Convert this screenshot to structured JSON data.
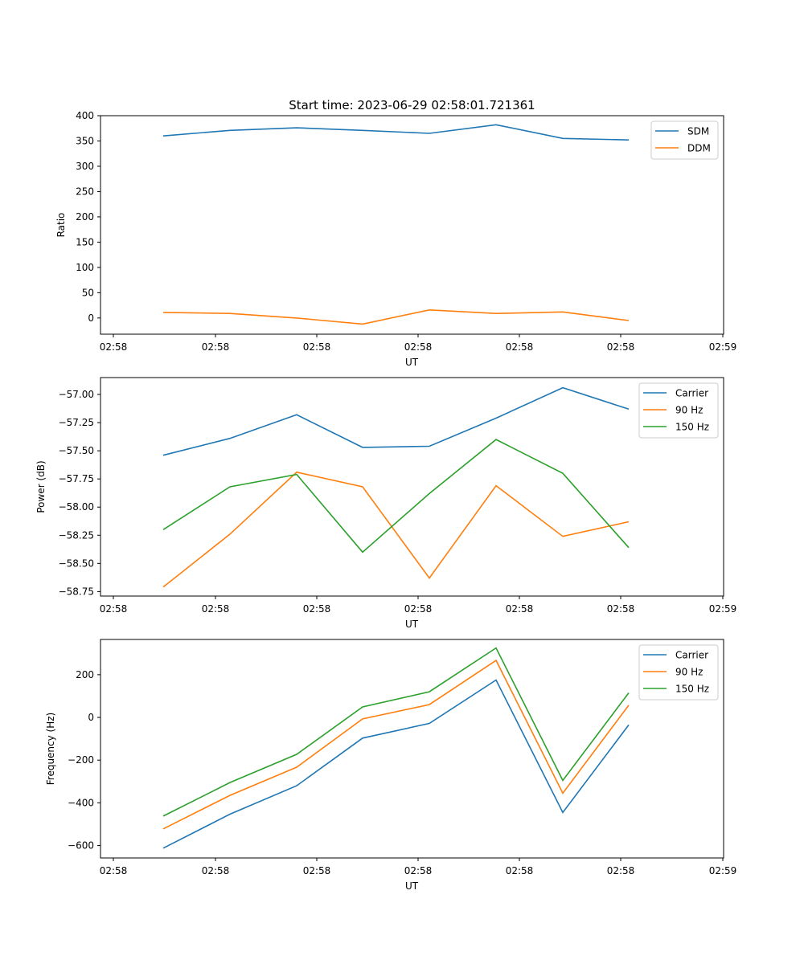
{
  "figure": {
    "title": "Start time: 2023-06-29 02:58:01.721361"
  },
  "colors": {
    "blue": "#1f77b4",
    "orange": "#ff7f0e",
    "green": "#2ca02c"
  },
  "chart_data": [
    {
      "type": "line",
      "title": "Start time: 2023-06-29 02:58:01.721361",
      "xlabel": "UT",
      "ylabel": "Ratio",
      "x_tick_labels": [
        "02:58",
        "02:58",
        "02:58",
        "02:58",
        "02:58",
        "02:58",
        "02:58"
      ],
      "x_tick_labels_last": "02:59",
      "ylim": [
        -32,
        400
      ],
      "y_ticks": [
        0,
        50,
        100,
        150,
        200,
        250,
        300,
        350,
        400
      ],
      "legend_position": "top-right",
      "grid": false,
      "series": [
        {
          "name": "SDM",
          "color": "#1f77b4",
          "values": [
            360,
            371,
            376,
            371,
            365,
            382,
            355,
            352
          ]
        },
        {
          "name": "DDM",
          "color": "#ff7f0e",
          "values": [
            11,
            9,
            0,
            -12,
            16,
            9,
            12,
            -5
          ]
        }
      ]
    },
    {
      "type": "line",
      "title": "",
      "xlabel": "UT",
      "ylabel": "Power (dB)",
      "x_tick_labels": [
        "02:58",
        "02:58",
        "02:58",
        "02:58",
        "02:58",
        "02:58",
        "02:58"
      ],
      "x_tick_labels_last": "02:59",
      "ylim": [
        -58.79,
        -56.85
      ],
      "y_ticks": [
        -58.75,
        -58.5,
        -58.25,
        -58.0,
        -57.75,
        -57.5,
        -57.25,
        -57.0
      ],
      "y_tick_labels": [
        "−58.75",
        "−58.50",
        "−58.25",
        "−58.00",
        "−57.75",
        "−57.50",
        "−57.25",
        "−57.00"
      ],
      "legend_position": "top-right",
      "grid": false,
      "series": [
        {
          "name": "Carrier",
          "color": "#1f77b4",
          "values": [
            -57.54,
            -57.39,
            -57.18,
            -57.47,
            -57.46,
            -57.21,
            -56.94,
            -57.13
          ]
        },
        {
          "name": "90 Hz",
          "color": "#ff7f0e",
          "values": [
            -58.71,
            -58.24,
            -57.69,
            -57.82,
            -58.63,
            -57.81,
            -58.26,
            -58.13
          ]
        },
        {
          "name": "150 Hz",
          "color": "#2ca02c",
          "values": [
            -58.2,
            -57.82,
            -57.71,
            -58.4,
            -57.88,
            -57.4,
            -57.7,
            -58.36
          ]
        }
      ]
    },
    {
      "type": "line",
      "title": "",
      "xlabel": "UT",
      "ylabel": "Frequency (Hz)",
      "x_tick_labels": [
        "02:58",
        "02:58",
        "02:58",
        "02:58",
        "02:58",
        "02:58",
        "02:58"
      ],
      "x_tick_labels_last": "02:59",
      "ylim": [
        -658,
        365
      ],
      "y_ticks": [
        -600,
        -400,
        -200,
        0,
        200
      ],
      "y_tick_labels": [
        "−600",
        "−400",
        "−200",
        "0",
        "200"
      ],
      "legend_position": "top-right",
      "grid": false,
      "series": [
        {
          "name": "Carrier",
          "color": "#1f77b4",
          "values": [
            -612,
            -453,
            -320,
            -97,
            -28,
            175,
            -445,
            -35
          ]
        },
        {
          "name": "90 Hz",
          "color": "#ff7f0e",
          "values": [
            -522,
            -365,
            -233,
            -7,
            60,
            267,
            -355,
            57
          ]
        },
        {
          "name": "150 Hz",
          "color": "#2ca02c",
          "values": [
            -462,
            -305,
            -173,
            49,
            120,
            325,
            -295,
            115
          ]
        }
      ]
    }
  ]
}
